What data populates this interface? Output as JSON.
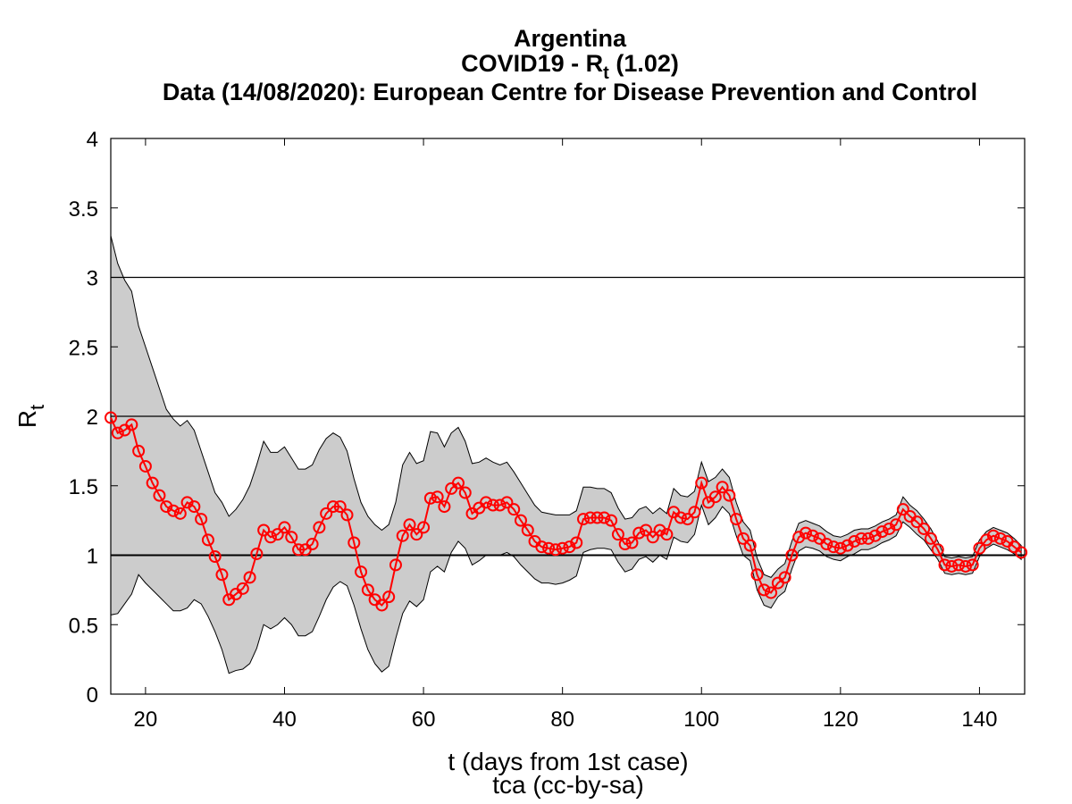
{
  "chart_data": {
    "type": "line",
    "title": "Argentina",
    "subtitle": {
      "text": "COVID19 - R",
      "sub": "t",
      "after": " (1.02)"
    },
    "source": "Data (14/08/2020): European Centre for Disease Prevention and Control",
    "xlabel": "t (days from 1st case)",
    "ylabel": {
      "text": "R",
      "sub": "t"
    },
    "footer": "tca (cc-by-sa)",
    "xlim": [
      15,
      146.5
    ],
    "ylim": [
      0,
      4
    ],
    "xticks": [
      20,
      40,
      60,
      80,
      100,
      120,
      140
    ],
    "yticks": [
      0,
      0.5,
      1,
      1.5,
      2,
      2.5,
      3,
      3.5,
      4
    ],
    "hlines": [
      1,
      2,
      3
    ],
    "color": "#ff0000",
    "band_color": "#cccccc",
    "x": [
      15,
      16,
      17,
      18,
      19,
      20,
      21,
      22,
      23,
      24,
      25,
      26,
      27,
      28,
      29,
      30,
      31,
      32,
      33,
      34,
      35,
      36,
      37,
      38,
      39,
      40,
      41,
      42,
      43,
      44,
      45,
      46,
      47,
      48,
      49,
      50,
      51,
      52,
      53,
      54,
      55,
      56,
      57,
      58,
      59,
      60,
      61,
      62,
      63,
      64,
      65,
      66,
      67,
      68,
      69,
      70,
      71,
      72,
      73,
      74,
      75,
      76,
      77,
      78,
      79,
      80,
      81,
      82,
      83,
      84,
      85,
      86,
      87,
      88,
      89,
      90,
      91,
      92,
      93,
      94,
      95,
      96,
      97,
      98,
      99,
      100,
      101,
      102,
      103,
      104,
      105,
      106,
      107,
      108,
      109,
      110,
      111,
      112,
      113,
      114,
      115,
      116,
      117,
      118,
      119,
      120,
      121,
      122,
      123,
      124,
      125,
      126,
      127,
      128,
      129,
      130,
      131,
      132,
      133,
      134,
      135,
      136,
      137,
      138,
      139,
      140,
      141,
      142,
      143,
      144,
      145,
      146
    ],
    "values": [
      1.99,
      1.88,
      1.9,
      1.94,
      1.75,
      1.64,
      1.52,
      1.43,
      1.35,
      1.32,
      1.3,
      1.38,
      1.35,
      1.26,
      1.11,
      0.99,
      0.86,
      0.68,
      0.72,
      0.76,
      0.84,
      1.01,
      1.18,
      1.13,
      1.15,
      1.2,
      1.13,
      1.04,
      1.04,
      1.08,
      1.2,
      1.3,
      1.35,
      1.35,
      1.29,
      1.09,
      0.88,
      0.75,
      0.68,
      0.64,
      0.7,
      0.93,
      1.14,
      1.22,
      1.15,
      1.2,
      1.41,
      1.42,
      1.35,
      1.48,
      1.52,
      1.45,
      1.3,
      1.34,
      1.38,
      1.36,
      1.36,
      1.38,
      1.33,
      1.25,
      1.18,
      1.1,
      1.06,
      1.05,
      1.04,
      1.05,
      1.06,
      1.09,
      1.26,
      1.27,
      1.27,
      1.27,
      1.25,
      1.15,
      1.08,
      1.09,
      1.16,
      1.18,
      1.13,
      1.18,
      1.15,
      1.31,
      1.27,
      1.26,
      1.31,
      1.52,
      1.38,
      1.42,
      1.49,
      1.43,
      1.26,
      1.12,
      1.07,
      0.86,
      0.75,
      0.73,
      0.8,
      0.84,
      1.0,
      1.13,
      1.16,
      1.14,
      1.12,
      1.08,
      1.06,
      1.05,
      1.07,
      1.1,
      1.12,
      1.12,
      1.14,
      1.17,
      1.19,
      1.22,
      1.33,
      1.28,
      1.24,
      1.19,
      1.12,
      1.04,
      0.93,
      0.92,
      0.93,
      0.92,
      0.93,
      1.05,
      1.11,
      1.14,
      1.12,
      1.1,
      1.06,
      1.02
    ],
    "upper": [
      3.3,
      3.1,
      2.98,
      2.9,
      2.65,
      2.5,
      2.35,
      2.2,
      2.05,
      1.98,
      1.93,
      1.97,
      1.9,
      1.75,
      1.6,
      1.45,
      1.38,
      1.28,
      1.33,
      1.4,
      1.5,
      1.65,
      1.82,
      1.74,
      1.74,
      1.78,
      1.7,
      1.62,
      1.62,
      1.65,
      1.76,
      1.84,
      1.88,
      1.85,
      1.75,
      1.55,
      1.38,
      1.28,
      1.22,
      1.18,
      1.22,
      1.38,
      1.65,
      1.74,
      1.66,
      1.68,
      1.89,
      1.88,
      1.78,
      1.88,
      1.92,
      1.82,
      1.66,
      1.67,
      1.7,
      1.67,
      1.65,
      1.67,
      1.6,
      1.52,
      1.44,
      1.36,
      1.31,
      1.3,
      1.29,
      1.29,
      1.29,
      1.32,
      1.49,
      1.49,
      1.48,
      1.48,
      1.45,
      1.34,
      1.26,
      1.27,
      1.33,
      1.35,
      1.3,
      1.34,
      1.3,
      1.48,
      1.43,
      1.42,
      1.46,
      1.67,
      1.53,
      1.56,
      1.62,
      1.56,
      1.38,
      1.24,
      1.18,
      0.98,
      0.86,
      0.84,
      0.9,
      0.94,
      1.1,
      1.23,
      1.25,
      1.23,
      1.21,
      1.17,
      1.14,
      1.13,
      1.15,
      1.18,
      1.19,
      1.19,
      1.21,
      1.24,
      1.26,
      1.29,
      1.42,
      1.36,
      1.32,
      1.26,
      1.19,
      1.1,
      0.99,
      0.98,
      0.99,
      0.98,
      0.99,
      1.11,
      1.17,
      1.2,
      1.18,
      1.16,
      1.12,
      1.07
    ],
    "lower": [
      0.57,
      0.58,
      0.65,
      0.72,
      0.86,
      0.8,
      0.75,
      0.7,
      0.65,
      0.6,
      0.6,
      0.62,
      0.68,
      0.65,
      0.56,
      0.45,
      0.32,
      0.15,
      0.17,
      0.18,
      0.22,
      0.33,
      0.5,
      0.47,
      0.5,
      0.55,
      0.5,
      0.42,
      0.42,
      0.45,
      0.56,
      0.68,
      0.77,
      0.81,
      0.78,
      0.64,
      0.47,
      0.32,
      0.22,
      0.16,
      0.2,
      0.4,
      0.58,
      0.67,
      0.63,
      0.68,
      0.88,
      0.92,
      0.88,
      1.02,
      1.1,
      1.05,
      0.93,
      0.96,
      1.0,
      1.0,
      1.0,
      1.02,
      0.99,
      0.93,
      0.88,
      0.83,
      0.8,
      0.8,
      0.79,
      0.8,
      0.82,
      0.85,
      1.02,
      1.04,
      1.05,
      1.05,
      1.04,
      0.95,
      0.88,
      0.9,
      0.97,
      0.99,
      0.95,
      1.0,
      0.97,
      1.13,
      1.1,
      1.09,
      1.15,
      1.36,
      1.22,
      1.27,
      1.35,
      1.3,
      1.14,
      1.0,
      0.96,
      0.75,
      0.64,
      0.62,
      0.7,
      0.74,
      0.9,
      1.03,
      1.06,
      1.05,
      1.03,
      0.99,
      0.97,
      0.96,
      0.99,
      1.01,
      1.04,
      1.04,
      1.06,
      1.09,
      1.11,
      1.14,
      1.24,
      1.2,
      1.15,
      1.11,
      1.04,
      0.97,
      0.87,
      0.86,
      0.87,
      0.86,
      0.87,
      0.99,
      1.05,
      1.08,
      1.06,
      1.04,
      1.01,
      0.97
    ]
  }
}
